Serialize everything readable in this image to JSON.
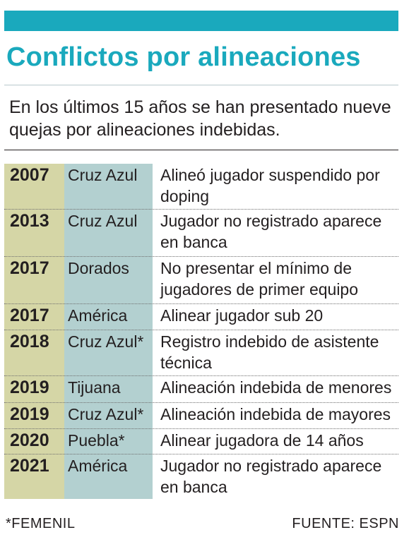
{
  "title": "Conflictos por alineaciones",
  "subtitle": "En los últimos 15 años se han presentado nueve quejas por alineaciones indebidas.",
  "colors": {
    "accent": "#1aa9bd",
    "year_column": "#d5d6a6",
    "team_column": "#b3d0d0"
  },
  "table": {
    "rows": [
      {
        "year": "2007",
        "team": "Cruz Azul",
        "description": "Alineó jugador suspendido por doping"
      },
      {
        "year": "2013",
        "team": "Cruz Azul",
        "description": "Jugador no registrado aparece en banca"
      },
      {
        "year": "2017",
        "team": "Dorados",
        "description": "No presentar el mínimo de jugadores de primer equipo"
      },
      {
        "year": "2017",
        "team": "América",
        "description": "Alinear jugador sub 20"
      },
      {
        "year": "2018",
        "team": "Cruz Azul*",
        "description": "Registro indebido de asistente técnica"
      },
      {
        "year": "2019",
        "team": "Tijuana",
        "description": "Alineación indebida de menores"
      },
      {
        "year": "2019",
        "team": "Cruz Azul*",
        "description": "Alineación indebida de mayores"
      },
      {
        "year": "2020",
        "team": "Puebla*",
        "description": "Alinear jugadora de 14 años"
      },
      {
        "year": "2021",
        "team": "América",
        "description": "Jugador no registrado aparece en banca"
      }
    ]
  },
  "footnote": "*FEMENIL",
  "source": "FUENTE: ESPN"
}
